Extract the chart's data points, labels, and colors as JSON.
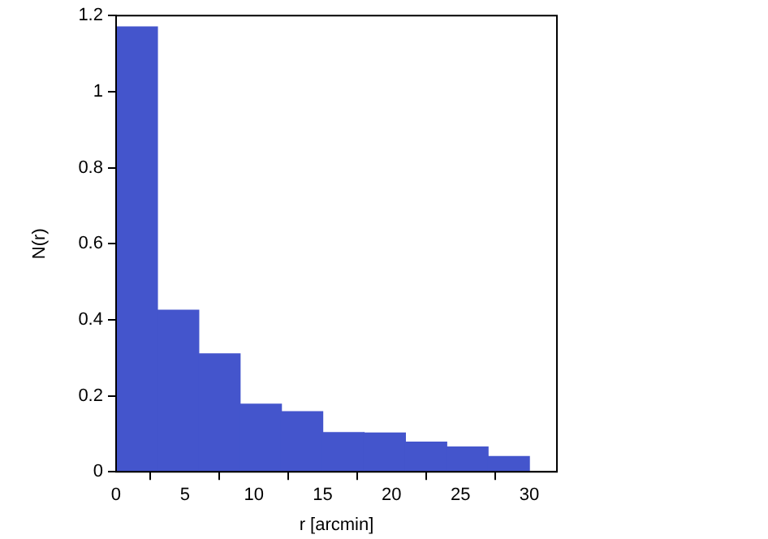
{
  "chart_data": {
    "type": "histogram",
    "xlabel": "r [arcmin]",
    "ylabel": "N(r)",
    "bins": [
      0,
      3,
      6,
      9,
      12,
      15,
      18,
      21,
      24,
      27,
      30
    ],
    "values": [
      1.17,
      0.425,
      0.31,
      0.178,
      0.158,
      0.103,
      0.102,
      0.078,
      0.065,
      0.04
    ],
    "color": "#4455cc",
    "xlim": [
      0,
      32
    ],
    "xticks": [
      0,
      5,
      10,
      15,
      20,
      25,
      30
    ],
    "ylim": [
      0,
      1.2
    ],
    "yticks": [
      0,
      0.2,
      0.4,
      0.6,
      0.8,
      1,
      1.2
    ],
    "grid": false,
    "legend": false
  }
}
